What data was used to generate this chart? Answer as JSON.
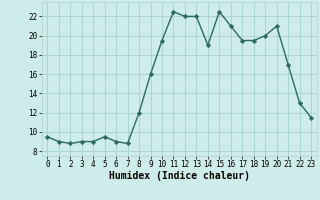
{
  "x": [
    0,
    1,
    2,
    3,
    4,
    5,
    6,
    7,
    8,
    9,
    10,
    11,
    12,
    13,
    14,
    15,
    16,
    17,
    18,
    19,
    20,
    21,
    22,
    23
  ],
  "y": [
    9.5,
    9.0,
    8.8,
    9.0,
    9.0,
    9.5,
    9.0,
    8.8,
    12.0,
    16.0,
    19.5,
    22.5,
    22.0,
    22.0,
    19.0,
    22.5,
    21.0,
    19.5,
    19.5,
    20.0,
    21.0,
    17.0,
    13.0,
    11.5
  ],
  "line_color": "#2d6b5e",
  "marker": "D",
  "marker_size": 2.2,
  "line_width": 1.0,
  "bg_color": "#ceecea",
  "grid_color": "#aed4d0",
  "xlabel": "Humidex (Indice chaleur)",
  "xlim": [
    -0.5,
    23.5
  ],
  "ylim": [
    7.5,
    23.5
  ],
  "yticks": [
    8,
    10,
    12,
    14,
    16,
    18,
    20,
    22
  ],
  "xticks": [
    0,
    1,
    2,
    3,
    4,
    5,
    6,
    7,
    8,
    9,
    10,
    11,
    12,
    13,
    14,
    15,
    16,
    17,
    18,
    19,
    20,
    21,
    22,
    23
  ]
}
